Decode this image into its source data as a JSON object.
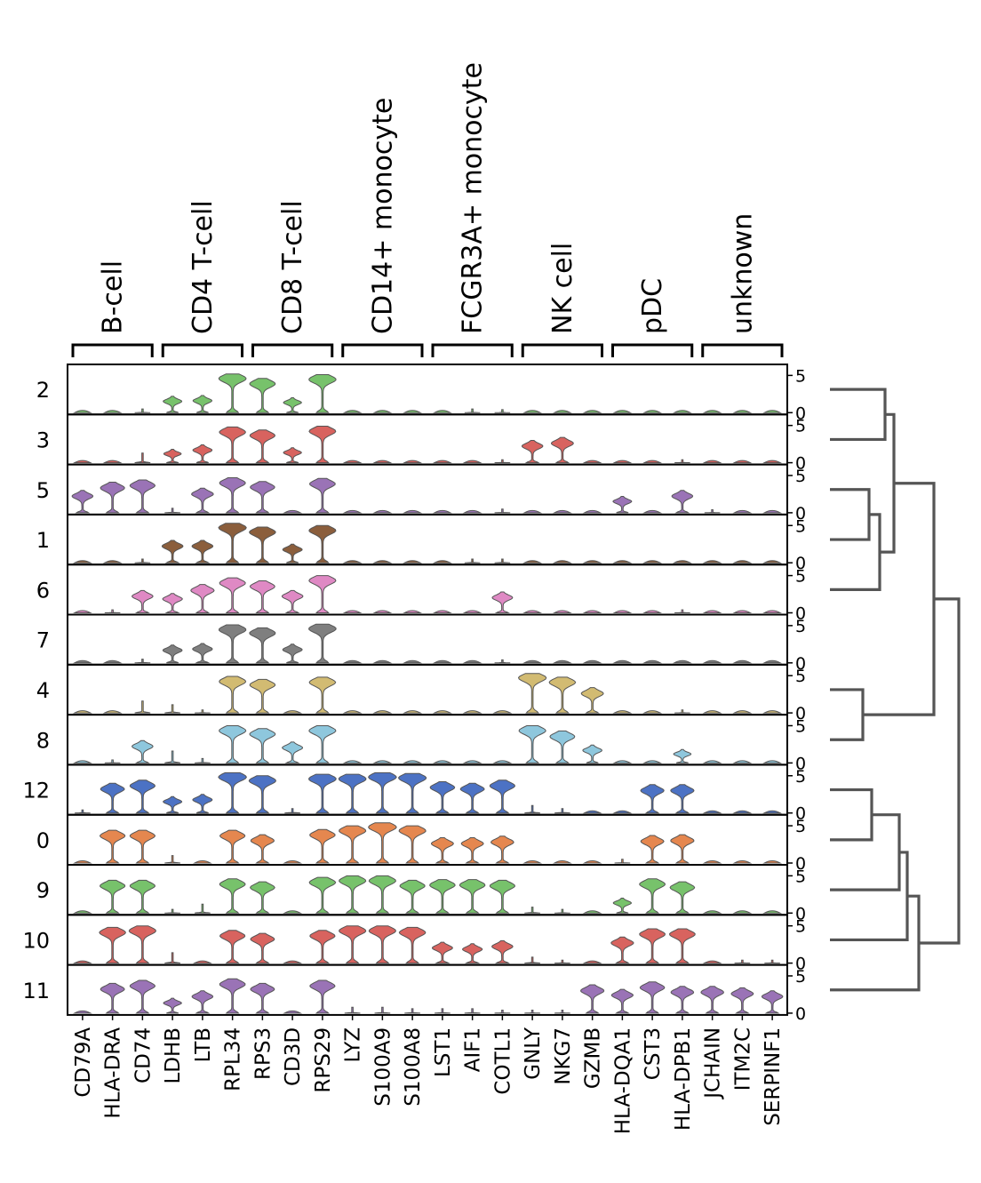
{
  "chart_data": {
    "type": "stacked-violin",
    "title": "",
    "xlabel": "",
    "ylabel": "",
    "ylim": [
      0,
      6
    ],
    "yticks": [
      0,
      5
    ],
    "dendrogram": true,
    "groups": [
      {
        "name": "B-cell",
        "genes": [
          "CD79A",
          "HLA-DRA",
          "CD74"
        ]
      },
      {
        "name": "CD4 T-cell",
        "genes": [
          "LDHB",
          "LTB",
          "RPL34"
        ]
      },
      {
        "name": "CD8 T-cell",
        "genes": [
          "RPS3",
          "CD3D",
          "RPS29"
        ]
      },
      {
        "name": "CD14+ monocyte",
        "genes": [
          "LYZ",
          "S100A9",
          "S100A8"
        ]
      },
      {
        "name": "FCGR3A+ monocyte",
        "genes": [
          "LST1",
          "AIF1",
          "COTL1"
        ]
      },
      {
        "name": "NK cell",
        "genes": [
          "GNLY",
          "NKG7",
          "GZMB"
        ]
      },
      {
        "name": "pDC",
        "genes": [
          "HLA-DQA1",
          "CST3",
          "HLA-DPB1"
        ]
      },
      {
        "name": "unknown",
        "genes": [
          "JCHAIN",
          "ITM2C",
          "SERPINF1"
        ]
      }
    ],
    "genes": [
      "CD79A",
      "HLA-DRA",
      "CD74",
      "LDHB",
      "LTB",
      "RPL34",
      "RPS3",
      "CD3D",
      "RPS29",
      "LYZ",
      "S100A9",
      "S100A8",
      "LST1",
      "AIF1",
      "COTL1",
      "GNLY",
      "NKG7",
      "GZMB",
      "HLA-DQA1",
      "CST3",
      "HLA-DPB1",
      "JCHAIN",
      "ITM2C",
      "SERPINF1"
    ],
    "rows": [
      {
        "cluster": "2",
        "color": "#77c26b",
        "values": [
          0.2,
          0.3,
          0.5,
          2.2,
          2.3,
          5.2,
          4.6,
          2.0,
          5.1,
          0.2,
          0.2,
          0.2,
          0.2,
          0.5,
          0.4,
          0.2,
          0.2,
          0.1,
          0.1,
          0.2,
          0.2,
          0.1,
          0.1,
          0.1
        ]
      },
      {
        "cluster": "3",
        "color": "#d8635f",
        "values": [
          0.2,
          0.3,
          1.3,
          1.8,
          2.4,
          4.8,
          4.4,
          2.0,
          4.9,
          0.2,
          0.2,
          0.2,
          0.2,
          0.2,
          0.4,
          3.0,
          3.4,
          0.1,
          0.1,
          0.2,
          0.4,
          0.1,
          0.1,
          0.1
        ]
      },
      {
        "cluster": "5",
        "color": "#9a73b6",
        "values": [
          3.0,
          4.1,
          4.4,
          0.6,
          3.3,
          4.7,
          4.2,
          0.2,
          4.6,
          0.2,
          0.2,
          0.2,
          0.2,
          0.2,
          0.5,
          0.2,
          0.2,
          0.1,
          2.2,
          0.3,
          3.0,
          0.4,
          0.2,
          0.1
        ]
      },
      {
        "cluster": "1",
        "color": "#8b5e3c",
        "values": [
          0.2,
          0.3,
          0.5,
          3.0,
          3.0,
          5.3,
          4.8,
          2.5,
          5.0,
          0.2,
          0.2,
          0.2,
          0.2,
          0.5,
          0.5,
          0.2,
          0.2,
          0.1,
          0.1,
          0.2,
          0.2,
          0.1,
          0.1,
          0.1
        ]
      },
      {
        "cluster": "6",
        "color": "#df89c4",
        "values": [
          0.2,
          0.4,
          3.0,
          2.6,
          3.8,
          4.7,
          4.3,
          3.0,
          5.0,
          0.2,
          0.3,
          0.3,
          0.2,
          0.2,
          2.8,
          0.3,
          0.2,
          0.1,
          0.1,
          0.2,
          0.4,
          0.1,
          0.1,
          0.1
        ]
      },
      {
        "cluster": "7",
        "color": "#7f7f7f",
        "values": [
          0.2,
          0.3,
          0.5,
          2.4,
          2.6,
          5.1,
          4.7,
          2.5,
          5.2,
          0.3,
          0.3,
          0.3,
          0.2,
          0.3,
          0.4,
          0.2,
          0.2,
          0.1,
          0.1,
          0.2,
          0.2,
          0.1,
          0.1,
          0.1
        ]
      },
      {
        "cluster": "4",
        "color": "#d2bb72",
        "values": [
          0.2,
          0.3,
          1.6,
          1.1,
          0.4,
          4.9,
          4.5,
          0.2,
          4.8,
          0.2,
          0.2,
          0.2,
          0.2,
          0.2,
          0.2,
          5.3,
          4.8,
          3.4,
          0.1,
          0.2,
          0.4,
          0.1,
          0.1,
          0.1
        ]
      },
      {
        "cluster": "8",
        "color": "#8ec7dd",
        "values": [
          0.2,
          0.4,
          3.0,
          1.6,
          0.6,
          5.0,
          4.6,
          2.8,
          5.0,
          0.2,
          0.2,
          0.2,
          0.2,
          0.2,
          0.2,
          5.0,
          4.3,
          2.4,
          0.1,
          0.2,
          1.8,
          0.1,
          0.1,
          0.1
        ]
      },
      {
        "cluster": "12",
        "color": "#4c72c4",
        "values": [
          0.4,
          4.0,
          4.4,
          2.2,
          2.5,
          5.4,
          5.0,
          0.6,
          5.2,
          5.2,
          5.4,
          5.3,
          4.2,
          4.0,
          4.4,
          1.0,
          0.6,
          0.2,
          0.3,
          3.8,
          3.8,
          0.2,
          0.1,
          0.1
        ]
      },
      {
        "cluster": "0",
        "color": "#e5874f",
        "values": [
          0.2,
          4.4,
          4.4,
          1.0,
          0.2,
          4.4,
          3.8,
          0.2,
          4.5,
          5.0,
          5.4,
          5.0,
          3.4,
          3.4,
          3.6,
          0.2,
          0.2,
          0.1,
          0.5,
          3.7,
          3.8,
          0.1,
          0.1,
          0.1
        ]
      },
      {
        "cluster": "9",
        "color": "#77c26b",
        "values": [
          0.2,
          4.4,
          4.4,
          0.5,
          1.2,
          4.6,
          4.2,
          0.2,
          4.8,
          5.0,
          5.0,
          4.4,
          4.5,
          4.5,
          4.4,
          0.8,
          0.5,
          0.1,
          2.0,
          4.6,
          4.2,
          0.1,
          0.1,
          0.1
        ]
      },
      {
        "cluster": "10",
        "color": "#d8635f",
        "values": [
          0.2,
          4.8,
          5.0,
          1.4,
          0.3,
          4.4,
          4.0,
          0.1,
          4.4,
          5.0,
          5.0,
          4.8,
          2.8,
          2.6,
          3.0,
          0.8,
          0.4,
          0.1,
          3.5,
          4.6,
          4.6,
          0.1,
          0.4,
          0.4
        ]
      },
      {
        "cluster": "11",
        "color": "#9a73b6",
        "values": [
          0.3,
          4.0,
          4.4,
          2.0,
          3.0,
          4.6,
          4.0,
          0.1,
          4.4,
          0.8,
          0.8,
          0.6,
          0.6,
          0.6,
          0.4,
          0.4,
          0.4,
          3.8,
          3.2,
          4.2,
          3.6,
          3.6,
          3.4,
          3.0
        ]
      }
    ]
  }
}
